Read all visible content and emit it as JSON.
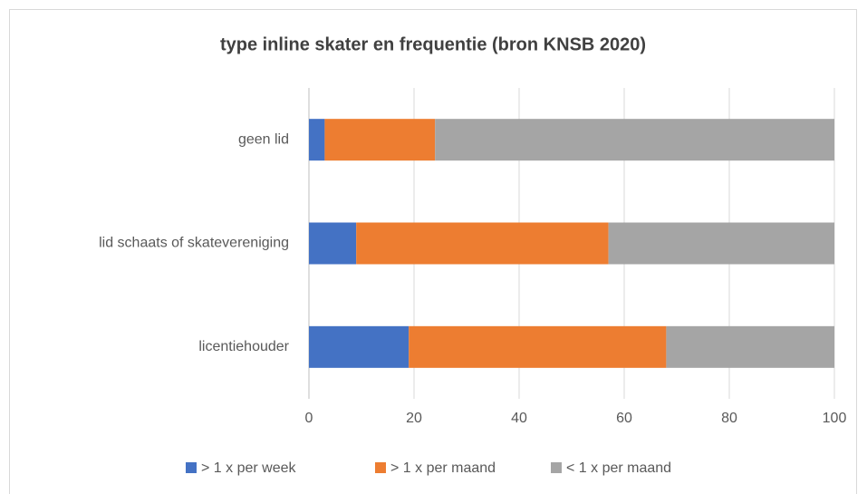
{
  "chart_data": {
    "type": "stacked-bar-horizontal",
    "title": "type inline skater en frequentie (bron KNSB 2020)",
    "categories": [
      "geen lid",
      "lid schaats of skatevereniging",
      "licentiehouder"
    ],
    "series": [
      {
        "name": "> 1 x per week",
        "color": "#4472c4",
        "values": [
          3,
          9,
          19
        ]
      },
      {
        "name": "> 1 x per maand",
        "color": "#ed7d31",
        "values": [
          21,
          48,
          49
        ]
      },
      {
        "name": "< 1 x per maand",
        "color": "#a5a5a5",
        "values": [
          76,
          43,
          32
        ]
      }
    ],
    "xlim": [
      0,
      100
    ],
    "xticks": [
      0,
      20,
      40,
      60,
      80,
      100
    ],
    "grid": true,
    "legend": "bottom"
  }
}
